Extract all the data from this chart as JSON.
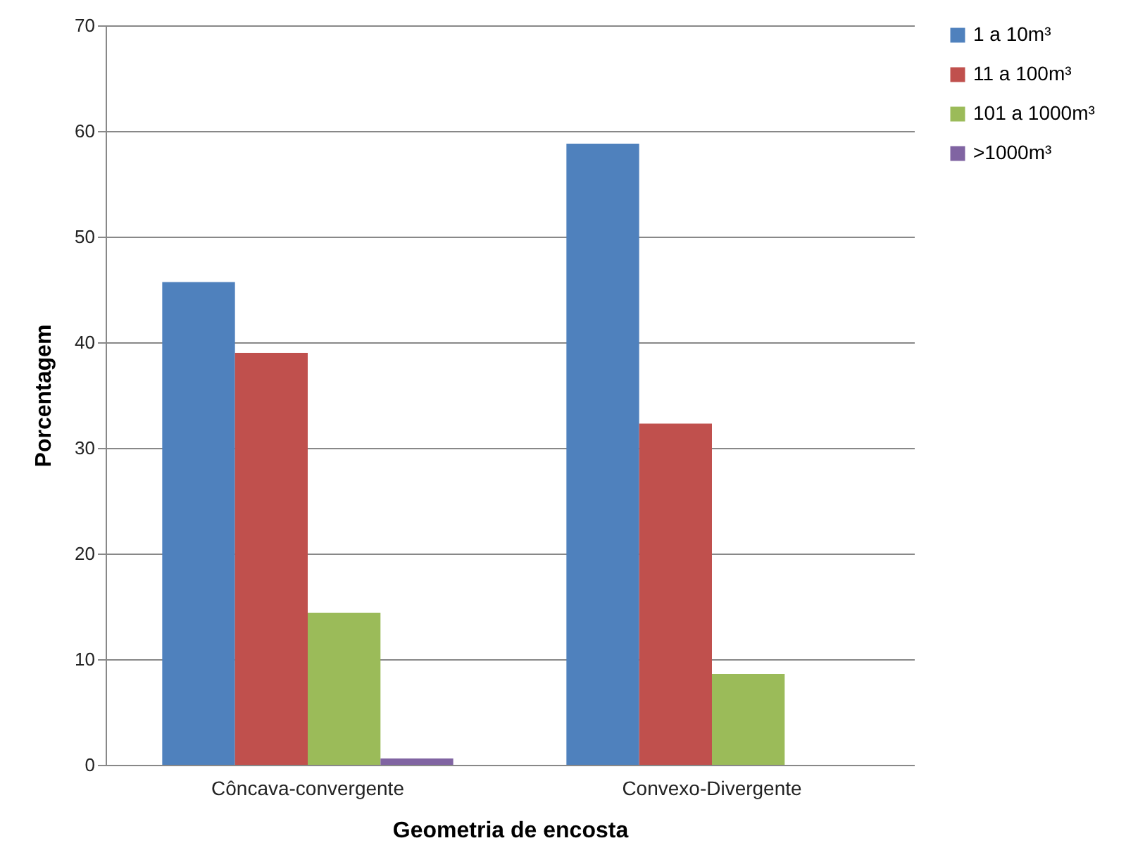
{
  "chart_data": {
    "type": "bar",
    "xlabel": "Geometria de encosta",
    "ylabel": "Porcentagem",
    "categories": [
      "Côncava-convergente",
      "Convexo-Divergente"
    ],
    "series": [
      {
        "name": "1 a 10m³",
        "color": "#4f81bd",
        "values": [
          45.7,
          58.8
        ]
      },
      {
        "name": "11 a 100m³",
        "color": "#c0504d",
        "values": [
          39.0,
          32.3
        ]
      },
      {
        "name": "101 a 1000m³",
        "color": "#9bbb59",
        "values": [
          14.4,
          8.6
        ]
      },
      {
        "name": ">1000m³",
        "color": "#8064a2",
        "values": [
          0.6,
          0
        ]
      }
    ],
    "ylim": [
      0,
      70
    ],
    "yticks": [
      0,
      10,
      20,
      30,
      40,
      50,
      60,
      70
    ],
    "grid": "y",
    "legend": "right"
  }
}
